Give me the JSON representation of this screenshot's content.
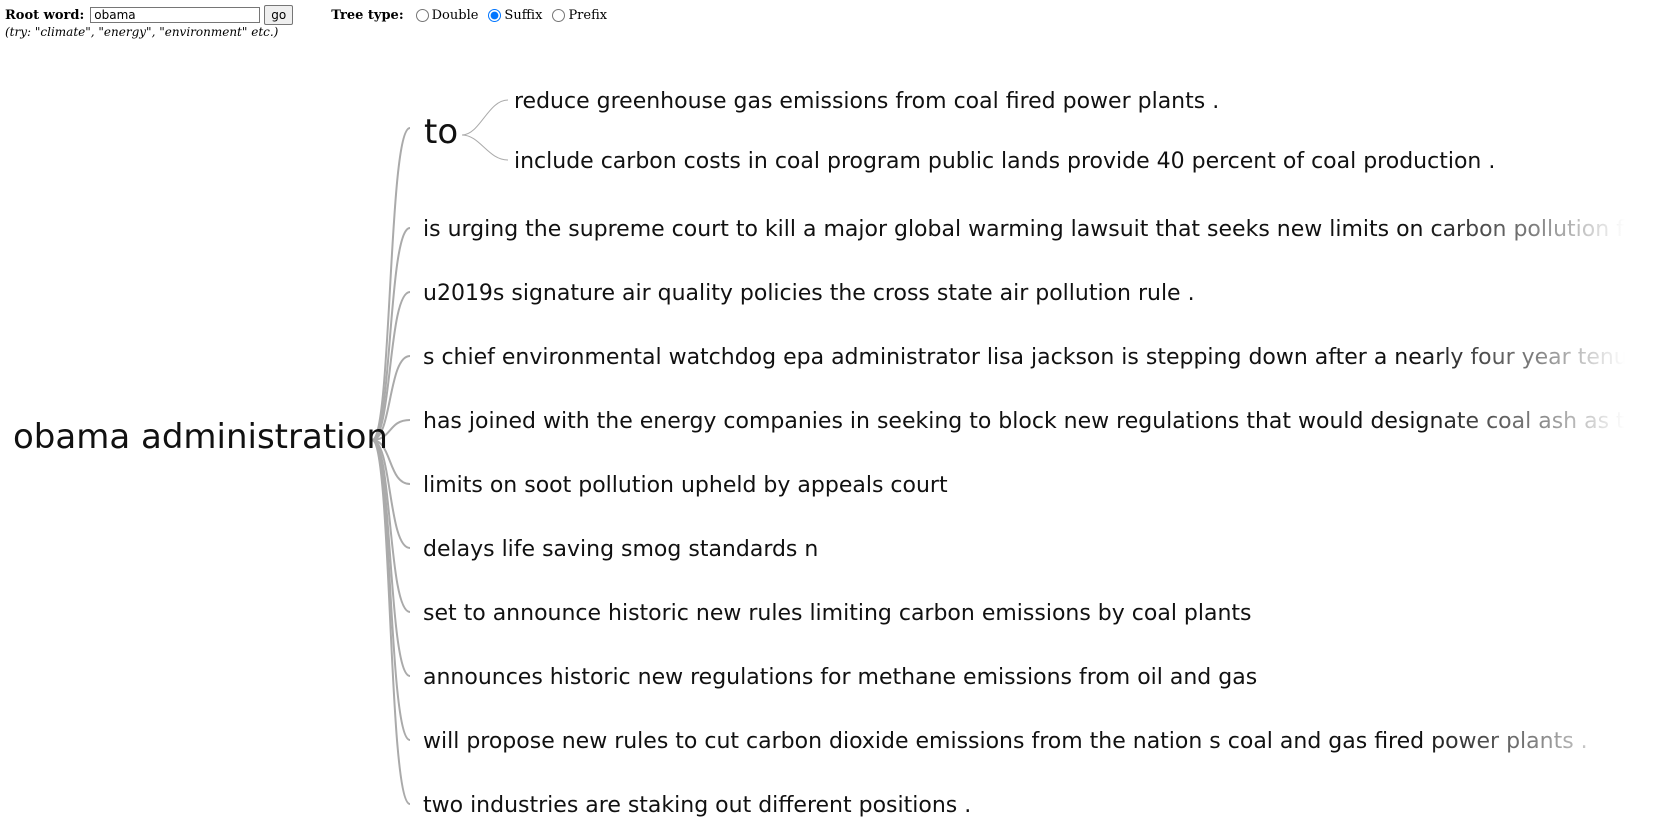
{
  "controls": {
    "root_word_label": "Root word:",
    "root_word_value": "obama",
    "go_label": "go",
    "hint": "(try: \"climate\", \"energy\", \"environment\" etc.)",
    "tree_type_label": "Tree type:",
    "options": [
      {
        "label": "Double",
        "checked": false
      },
      {
        "label": "Suffix",
        "checked": true
      },
      {
        "label": "Prefix",
        "checked": false
      }
    ]
  },
  "tree": {
    "root": "obama administration",
    "to_node": {
      "label": "to",
      "children": [
        "reduce greenhouse gas emissions from coal fired power plants .",
        "include carbon costs in coal program public lands provide 40 percent of coal production ."
      ]
    },
    "branches": [
      "is urging the supreme court to kill a major global warming lawsuit that seeks new limits on carbon pollution fro",
      "u2019s signature air quality policies the cross state air pollution rule .",
      "s chief environmental watchdog epa administrator lisa jackson is stepping down after a nearly four year tenure",
      "has joined with the energy companies in seeking to block new regulations that would designate coal ash as to",
      "limits on soot pollution upheld by appeals court",
      "delays life saving smog standards n",
      "set to announce historic new rules limiting carbon emissions by coal plants",
      "announces historic new regulations for methane emissions from oil and gas",
      "will propose new rules to cut carbon dioxide emissions from the nation s coal and gas fired power plants .",
      "two industries are staking out different positions ."
    ]
  }
}
